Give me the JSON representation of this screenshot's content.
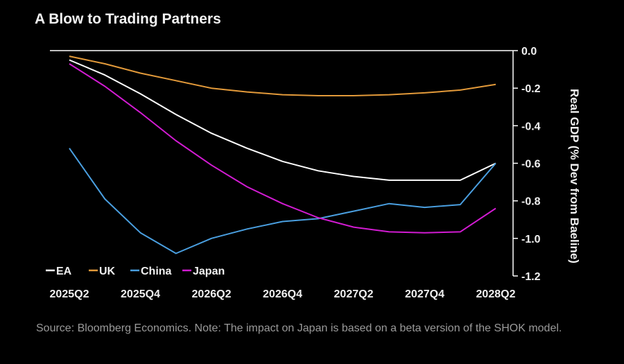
{
  "title": "A Blow to Trading Partners",
  "source": "Source: Bloomberg Economics. Note: The impact on Japan is based on a beta version of the SHOK model.",
  "chart_data": {
    "type": "line",
    "title": "A Blow to Trading Partners",
    "xlabel": "",
    "ylabel": "Real GDP (% Dev from Baeline)",
    "ylim": [
      -1.2,
      0.0
    ],
    "y_axis_side": "right",
    "y_ticks": [
      "0.0",
      "-0.2",
      "-0.4",
      "-0.6",
      "-0.8",
      "-1.0",
      "-1.2"
    ],
    "x": [
      "2025Q2",
      "2025Q3",
      "2025Q4",
      "2026Q1",
      "2026Q2",
      "2026Q3",
      "2026Q4",
      "2027Q1",
      "2027Q2",
      "2027Q3",
      "2027Q4",
      "2028Q1",
      "2028Q2"
    ],
    "x_tick_labels": [
      "2025Q2",
      "2025Q4",
      "2026Q2",
      "2026Q4",
      "2027Q2",
      "2027Q4",
      "2028Q2"
    ],
    "grid": false,
    "legend_position": "bottom-left",
    "series": [
      {
        "name": "EA",
        "color": "#ffffff",
        "values": [
          -0.05,
          -0.13,
          -0.23,
          -0.34,
          -0.44,
          -0.52,
          -0.59,
          -0.64,
          -0.67,
          -0.69,
          -0.69,
          -0.69,
          -0.6
        ]
      },
      {
        "name": "UK",
        "color": "#e39a3a",
        "values": [
          -0.03,
          -0.07,
          -0.12,
          -0.16,
          -0.2,
          -0.22,
          -0.235,
          -0.24,
          -0.24,
          -0.235,
          -0.225,
          -0.21,
          -0.18
        ]
      },
      {
        "name": "China",
        "color": "#4a9fe0",
        "values": [
          -0.52,
          -0.79,
          -0.97,
          -1.08,
          -1.0,
          -0.95,
          -0.91,
          -0.895,
          -0.855,
          -0.815,
          -0.835,
          -0.82,
          -0.6
        ]
      },
      {
        "name": "Japan",
        "color": "#d21bd2",
        "values": [
          -0.07,
          -0.19,
          -0.33,
          -0.48,
          -0.61,
          -0.725,
          -0.815,
          -0.89,
          -0.94,
          -0.965,
          -0.97,
          -0.965,
          -0.84
        ]
      }
    ]
  }
}
